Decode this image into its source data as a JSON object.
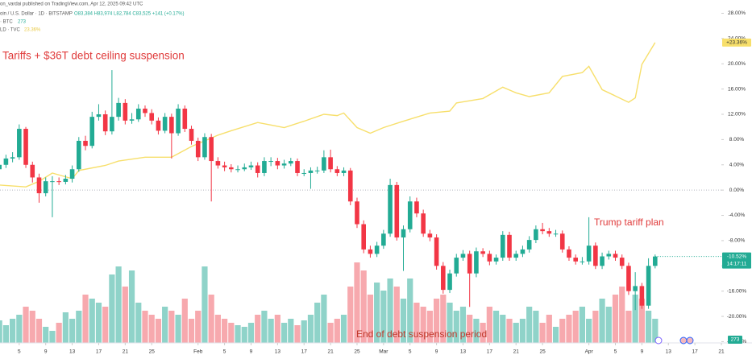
{
  "header": {
    "publisher": "on_vardai published on TradingView.com, Apr 12, 2025 09:42 UTC",
    "legend_main": "oin / U.S. Dollar · 1D · BITSTAMP",
    "legend_ohlc": "O83,384 H83,974 L82,784 C83,525 +141 (+0.17%)",
    "legend_volume": "· BTC",
    "legend_volume_value": "273",
    "legend_gold": "LD · TVC",
    "legend_gold_value": "23.36%"
  },
  "chart_data": {
    "type": "candlestick",
    "annotations": [
      "Tariffs + $36T debt ceiling suspension",
      "Trump tariff plan",
      "End of debt suspension period"
    ],
    "xlim": [
      0.1,
      109.0
    ],
    "ylim": [
      -24.2,
      30.1
    ],
    "xticks": [
      {
        "value": 3,
        "label": "5"
      },
      {
        "value": 7,
        "label": "9"
      },
      {
        "value": 11,
        "label": "13"
      },
      {
        "value": 15,
        "label": "17"
      },
      {
        "value": 19,
        "label": "21"
      },
      {
        "value": 23,
        "label": "25"
      },
      {
        "value": 30,
        "label": "Feb"
      },
      {
        "value": 34,
        "label": "5"
      },
      {
        "value": 38,
        "label": "9"
      },
      {
        "value": 42,
        "label": "13"
      },
      {
        "value": 46,
        "label": "17"
      },
      {
        "value": 50,
        "label": "21"
      },
      {
        "value": 54,
        "label": "25"
      },
      {
        "value": 58,
        "label": "Mar"
      },
      {
        "value": 62,
        "label": "5"
      },
      {
        "value": 66,
        "label": "9"
      },
      {
        "value": 70,
        "label": "13"
      },
      {
        "value": 74,
        "label": "17"
      },
      {
        "value": 78,
        "label": "21"
      },
      {
        "value": 82,
        "label": "25"
      },
      {
        "value": 89,
        "label": "Apr"
      },
      {
        "value": 93,
        "label": "5"
      },
      {
        "value": 97,
        "label": "9"
      },
      {
        "value": 101,
        "label": "13"
      },
      {
        "value": 105,
        "label": "17"
      },
      {
        "value": 109,
        "label": "21"
      }
    ],
    "yticks": [
      {
        "value": 28,
        "label": "28.00%"
      },
      {
        "value": 24,
        "label": "24.00%"
      },
      {
        "value": 20,
        "label": "20.00%"
      },
      {
        "value": 16,
        "label": "16.00%"
      },
      {
        "value": 12,
        "label": "12.00%"
      },
      {
        "value": 8,
        "label": "8.00%"
      },
      {
        "value": 4,
        "label": "4.00%"
      },
      {
        "value": 0,
        "label": "0.00%"
      },
      {
        "value": -4,
        "label": "-4.00%"
      },
      {
        "value": -8,
        "label": "-8.00%"
      },
      {
        "value": -12,
        "label": "-12.00%"
      },
      {
        "value": -16,
        "label": "-16.00%"
      },
      {
        "value": -20,
        "label": "-20.00%"
      },
      {
        "value": -24,
        "label": "-24.00%"
      }
    ],
    "zero_line": true,
    "up_color": "#22ab94",
    "down_color": "#f23645",
    "volume_up_color": "#8fd3c9",
    "volume_down_color": "#f7a9ae",
    "candles": [
      [
        3.3,
        4.6,
        2.8,
        4.0
      ],
      [
        4.0,
        5.6,
        3.5,
        5.0
      ],
      [
        5.0,
        6.0,
        4.4,
        5.2
      ],
      [
        5.2,
        10.4,
        4.8,
        9.7
      ],
      [
        9.7,
        10.0,
        3.5,
        4.0
      ],
      [
        4.0,
        4.5,
        1.2,
        2.0
      ],
      [
        2.0,
        2.6,
        -2.0,
        -0.5
      ],
      [
        -0.5,
        2.0,
        -1.0,
        1.4
      ],
      [
        1.4,
        2.2,
        -4.3,
        1.4
      ],
      [
        1.4,
        2.0,
        0.8,
        1.3
      ],
      [
        1.3,
        2.4,
        0.9,
        1.8
      ],
      [
        1.8,
        3.9,
        1.2,
        3.3
      ],
      [
        3.3,
        8.4,
        2.9,
        7.8
      ],
      [
        7.8,
        8.6,
        6.3,
        7.0
      ],
      [
        7.0,
        12.4,
        6.6,
        11.6
      ],
      [
        11.6,
        13.6,
        11.0,
        12.0
      ],
      [
        12.0,
        12.6,
        8.7,
        9.3
      ],
      [
        9.3,
        19.0,
        8.8,
        11.6
      ],
      [
        11.6,
        14.6,
        11.0,
        13.8
      ],
      [
        13.8,
        14.4,
        10.4,
        11.0
      ],
      [
        11.0,
        12.2,
        10.5,
        11.2
      ],
      [
        11.2,
        13.6,
        10.8,
        12.9
      ],
      [
        12.9,
        13.4,
        11.6,
        12.2
      ],
      [
        12.2,
        12.8,
        10.4,
        11.0
      ],
      [
        11.0,
        11.5,
        8.8,
        9.4
      ],
      [
        9.4,
        12.2,
        9.0,
        11.6
      ],
      [
        11.6,
        12.1,
        5.0,
        9.0
      ],
      [
        9.0,
        13.6,
        8.6,
        12.9
      ],
      [
        12.9,
        13.4,
        9.2,
        9.7
      ],
      [
        9.7,
        10.2,
        7.2,
        7.8
      ],
      [
        7.8,
        8.3,
        4.6,
        5.2
      ],
      [
        5.2,
        9.0,
        4.8,
        8.4
      ],
      [
        8.4,
        8.9,
        -1.8,
        4.6
      ],
      [
        4.6,
        5.2,
        3.4,
        3.9
      ],
      [
        3.9,
        4.5,
        3.0,
        3.6
      ],
      [
        3.6,
        4.1,
        2.8,
        3.3
      ],
      [
        3.3,
        3.9,
        2.8,
        3.3
      ],
      [
        3.3,
        4.2,
        3.0,
        3.6
      ],
      [
        3.6,
        4.5,
        3.2,
        3.9
      ],
      [
        3.9,
        4.4,
        2.0,
        2.7
      ],
      [
        2.7,
        5.2,
        2.2,
        4.6
      ],
      [
        4.6,
        5.2,
        3.8,
        4.6
      ],
      [
        4.6,
        5.1,
        3.3,
        3.9
      ],
      [
        3.9,
        4.8,
        3.4,
        4.2
      ],
      [
        4.2,
        5.1,
        3.8,
        4.6
      ],
      [
        4.6,
        5.0,
        2.2,
        2.7
      ],
      [
        2.7,
        3.3,
        2.2,
        2.7
      ],
      [
        2.7,
        3.6,
        0.2,
        3.1
      ],
      [
        3.1,
        3.7,
        2.6,
        3.1
      ],
      [
        3.1,
        6.3,
        2.7,
        5.2
      ],
      [
        5.2,
        6.4,
        2.8,
        3.3
      ],
      [
        3.3,
        3.8,
        2.2,
        2.7
      ],
      [
        2.7,
        3.6,
        2.2,
        3.1
      ],
      [
        3.1,
        3.5,
        -2.4,
        -1.8
      ],
      [
        -1.8,
        -1.2,
        -6.0,
        -5.4
      ],
      [
        -5.4,
        -4.8,
        -10.0,
        -9.4
      ],
      [
        -9.4,
        -8.8,
        -10.7,
        -10.1
      ],
      [
        -10.1,
        -8.2,
        -10.6,
        -8.8
      ],
      [
        -8.8,
        -6.3,
        -9.3,
        -6.9
      ],
      [
        -6.9,
        1.8,
        -7.4,
        0.8
      ],
      [
        0.8,
        1.3,
        -8.0,
        -7.5
      ],
      [
        -7.5,
        -5.6,
        -12.8,
        -6.2
      ],
      [
        -6.2,
        -1.0,
        -6.7,
        -1.8
      ],
      [
        -1.8,
        -1.2,
        -4.3,
        -3.7
      ],
      [
        -3.7,
        -3.1,
        -7.4,
        -6.9
      ],
      [
        -6.9,
        -6.3,
        -8.1,
        -7.5
      ],
      [
        -7.5,
        -7.0,
        -12.6,
        -12.0
      ],
      [
        -12.0,
        -11.4,
        -16.4,
        -15.8
      ],
      [
        -15.8,
        -12.6,
        -16.3,
        -13.2
      ],
      [
        -13.2,
        -10.1,
        -13.7,
        -10.7
      ],
      [
        -10.7,
        -9.5,
        -11.2,
        -10.1
      ],
      [
        -10.1,
        -9.6,
        -18.5,
        -13.2
      ],
      [
        -13.2,
        -9.1,
        -13.8,
        -9.7
      ],
      [
        -9.7,
        -9.2,
        -10.6,
        -10.1
      ],
      [
        -10.1,
        -9.6,
        -11.9,
        -11.3
      ],
      [
        -11.3,
        -10.2,
        -11.8,
        -10.7
      ],
      [
        -10.7,
        -6.5,
        -11.2,
        -7.1
      ],
      [
        -7.1,
        -6.6,
        -11.2,
        -10.7
      ],
      [
        -10.7,
        -9.6,
        -11.2,
        -10.1
      ],
      [
        -10.1,
        -8.8,
        -10.6,
        -9.4
      ],
      [
        -9.4,
        -7.3,
        -9.9,
        -7.9
      ],
      [
        -7.9,
        -5.6,
        -8.4,
        -6.2
      ],
      [
        -6.2,
        -5.2,
        -7.0,
        -6.5
      ],
      [
        -6.5,
        -6.0,
        -7.4,
        -6.9
      ],
      [
        -6.9,
        -6.3,
        -7.4,
        -6.9
      ],
      [
        -6.9,
        -6.4,
        -9.9,
        -9.4
      ],
      [
        -9.4,
        -8.9,
        -11.2,
        -10.7
      ],
      [
        -10.7,
        -10.2,
        -11.8,
        -11.3
      ],
      [
        -11.3,
        -10.6,
        -11.8,
        -11.3
      ],
      [
        -11.3,
        -4.3,
        -11.8,
        -8.8
      ],
      [
        -8.8,
        -8.3,
        -12.5,
        -12.0
      ],
      [
        -12.0,
        -9.9,
        -12.5,
        -10.5
      ],
      [
        -10.5,
        -9.6,
        -11.0,
        -10.1
      ],
      [
        -10.1,
        -9.6,
        -11.2,
        -10.7
      ],
      [
        -10.7,
        -10.2,
        -12.5,
        -12.0
      ],
      [
        -12.0,
        -11.5,
        -16.6,
        -16.0
      ],
      [
        -16.0,
        -13.0,
        -19.0,
        -15.2
      ],
      [
        -15.2,
        -14.7,
        -18.8,
        -18.3
      ],
      [
        -18.3,
        -10.8,
        -18.8,
        -12.0
      ],
      [
        -12.0,
        -10.2,
        -12.4,
        -10.52
      ]
    ],
    "volume": [
      28,
      22,
      30,
      35,
      45,
      40,
      30,
      20,
      15,
      25,
      38,
      30,
      40,
      60,
      55,
      50,
      45,
      85,
      95,
      70,
      90,
      50,
      40,
      35,
      30,
      45,
      40,
      35,
      55,
      30,
      40,
      95,
      60,
      35,
      30,
      25,
      22,
      20,
      25,
      35,
      40,
      30,
      35,
      25,
      30,
      22,
      28,
      35,
      50,
      60,
      25,
      30,
      35,
      70,
      100,
      90,
      60,
      75,
      65,
      80,
      70,
      55,
      80,
      50,
      45,
      40,
      55,
      60,
      50,
      40,
      45,
      35,
      30,
      25,
      45,
      40,
      35,
      30,
      25,
      30,
      45,
      40,
      25,
      35,
      20,
      30,
      35,
      40,
      45,
      30,
      40,
      55,
      45,
      60,
      70,
      40,
      60,
      55,
      40,
      30
    ],
    "series": [
      {
        "name": "GOLD",
        "color": "#f7df6b",
        "x": [
          0,
          4,
          6,
          8,
          11,
          12,
          16,
          18,
          22,
          26,
          29,
          31,
          33,
          35,
          39,
          41,
          43,
          46,
          49,
          51,
          52,
          54,
          56,
          58,
          61,
          65,
          68,
          69,
          73,
          76,
          78,
          80,
          83,
          85,
          88,
          89,
          91,
          93,
          95,
          96,
          97,
          99
        ],
        "values": [
          0.8,
          0.5,
          1.4,
          2.7,
          1.8,
          3.1,
          3.9,
          4.6,
          5.2,
          5.2,
          6.9,
          7.8,
          8.7,
          9.4,
          10.7,
          10.3,
          9.9,
          10.9,
          12.0,
          11.8,
          12.2,
          9.9,
          9.0,
          9.9,
          10.9,
          12.2,
          12.5,
          13.8,
          14.5,
          16.3,
          15.4,
          14.8,
          15.4,
          18.0,
          18.6,
          19.6,
          15.9,
          14.9,
          13.9,
          14.6,
          19.9,
          23.36
        ],
        "value_labels": {
          "41": "+23.36%"
        }
      }
    ],
    "last_price_label": "-10.52%",
    "countdown": "14:17:11",
    "volume_label": "273"
  }
}
